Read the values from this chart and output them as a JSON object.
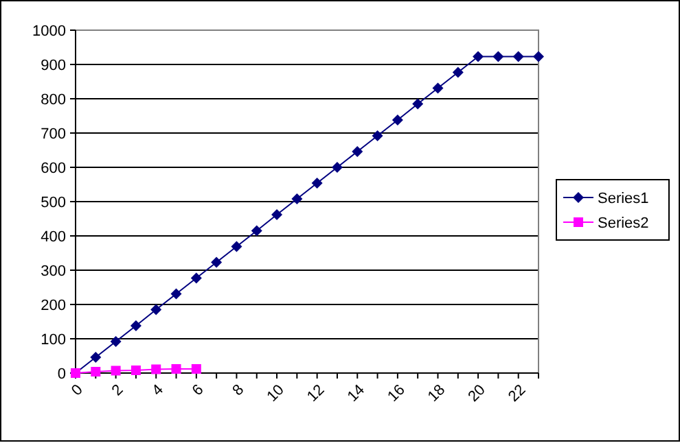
{
  "chart_data": {
    "type": "line",
    "x": [
      0,
      1,
      2,
      3,
      4,
      5,
      6,
      7,
      8,
      9,
      10,
      11,
      12,
      13,
      14,
      15,
      16,
      17,
      18,
      19,
      20,
      21,
      22,
      23
    ],
    "series": [
      {
        "name": "Series1",
        "color": "#000080",
        "marker": "diamond",
        "values": [
          0,
          46,
          92,
          138,
          185,
          231,
          277,
          323,
          369,
          415,
          462,
          508,
          554,
          600,
          646,
          692,
          738,
          785,
          831,
          877,
          923,
          923,
          923,
          923
        ]
      },
      {
        "name": "Series2",
        "color": "#ff00ff",
        "marker": "square",
        "x": [
          0,
          1,
          2,
          3,
          4,
          5,
          6
        ],
        "values": [
          0,
          4,
          7,
          8,
          11,
          12,
          12
        ]
      }
    ],
    "xlim": [
      0,
      23
    ],
    "xticks": [
      0,
      {
        "value": 1,
        "label": null
      },
      2,
      {
        "value": 3,
        "label": null
      },
      4,
      {
        "value": 5,
        "label": null
      },
      6,
      {
        "value": 7,
        "label": null
      },
      8,
      {
        "value": 9,
        "label": null
      },
      10,
      {
        "value": 11,
        "label": null
      },
      12,
      {
        "value": 13,
        "label": null
      },
      14,
      {
        "value": 15,
        "label": null
      },
      16,
      {
        "value": 17,
        "label": null
      },
      18,
      {
        "value": 19,
        "label": null
      },
      20,
      {
        "value": 21,
        "label": null
      },
      22,
      {
        "value": 23,
        "label": null
      }
    ],
    "ylim": [
      0,
      1000
    ],
    "yticks": [
      0,
      100,
      200,
      300,
      400,
      500,
      600,
      700,
      800,
      900,
      1000
    ],
    "grid": "y",
    "legend": "right",
    "line_style": "solid"
  }
}
